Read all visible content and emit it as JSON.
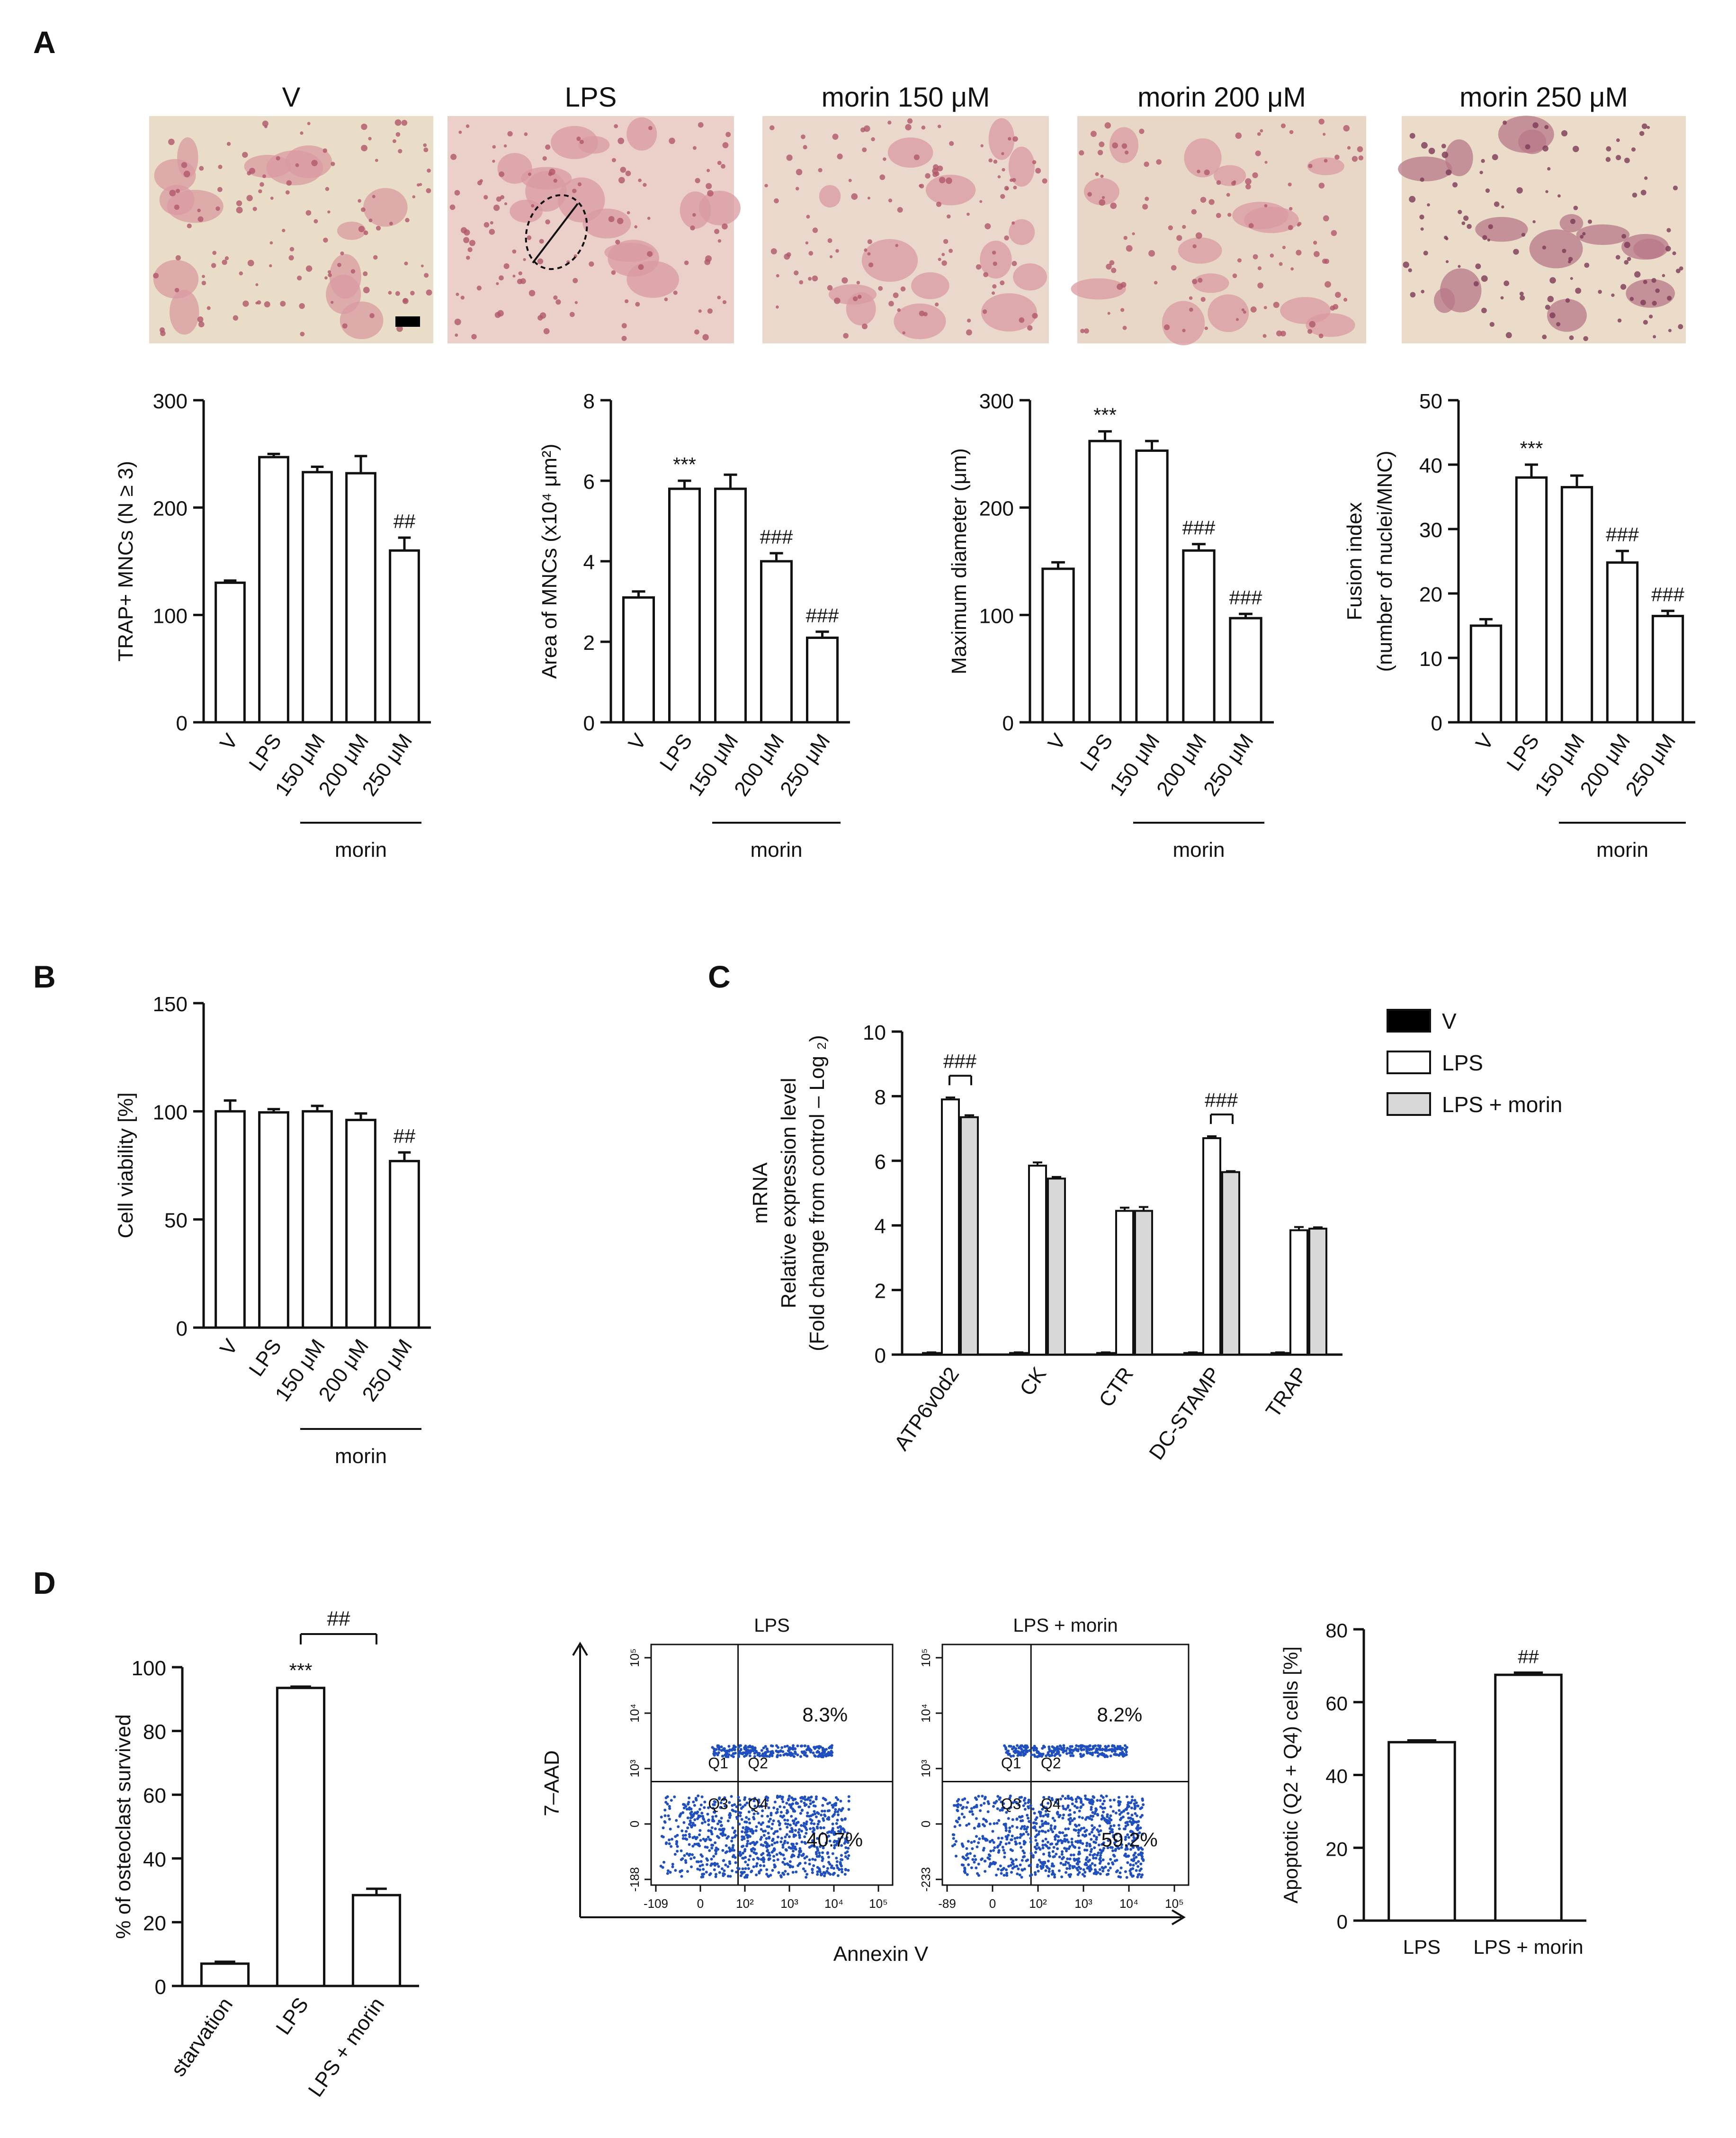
{
  "panel_letters": [
    "A",
    "B",
    "C",
    "D"
  ],
  "micrographs": {
    "titles": [
      "V",
      "LPS",
      "morin 150 μM",
      "morin 200 μM",
      "morin 250 μM"
    ],
    "tints": [
      "#e9ddc7",
      "#ebcfc9",
      "#ead8cc",
      "#e8d6c6",
      "#eadcc8"
    ]
  },
  "chart_data": [
    {
      "type": "bar",
      "panel": "A1",
      "categories": [
        "V",
        "LPS",
        "150 μM",
        "200 μM",
        "250 μM"
      ],
      "values": [
        130,
        247,
        233,
        232,
        160
      ],
      "errors": [
        2,
        3,
        5,
        16,
        12
      ],
      "annotations": [
        "",
        "",
        "",
        "",
        "##"
      ],
      "ylabel": "TRAP+ MNCs (N ≥ 3)",
      "yticks": [
        0,
        100,
        200,
        300
      ],
      "ylim": [
        0,
        300
      ],
      "group_label": "morin",
      "group_range": [
        2,
        4
      ],
      "legend": "none",
      "grid": false
    },
    {
      "type": "bar",
      "panel": "A2",
      "categories": [
        "V",
        "LPS",
        "150 μM",
        "200 μM",
        "250 μM"
      ],
      "values": [
        3.1,
        5.8,
        5.8,
        4.0,
        2.1
      ],
      "errors": [
        0.15,
        0.2,
        0.35,
        0.2,
        0.15
      ],
      "annotations": [
        "",
        "***",
        "",
        "###",
        "###"
      ],
      "ylabel": "Area of MNCs (x10⁴ μm²)",
      "yticks": [
        0,
        2,
        4,
        6,
        8
      ],
      "ylim": [
        0,
        8
      ],
      "group_label": "morin",
      "group_range": [
        2,
        4
      ],
      "legend": "none",
      "grid": false
    },
    {
      "type": "bar",
      "panel": "A3",
      "categories": [
        "V",
        "LPS",
        "150 μM",
        "200 μM",
        "250 μM"
      ],
      "values": [
        143,
        262,
        253,
        160,
        97
      ],
      "errors": [
        6,
        9,
        9,
        6,
        4
      ],
      "annotations": [
        "",
        "***",
        "",
        "###",
        "###"
      ],
      "ylabel": "Maximum diameter (μm)",
      "yticks": [
        0,
        100,
        200,
        300
      ],
      "ylim": [
        0,
        300
      ],
      "group_label": "morin",
      "group_range": [
        2,
        4
      ],
      "legend": "none",
      "grid": false
    },
    {
      "type": "bar",
      "panel": "A4",
      "categories": [
        "V",
        "LPS",
        "150 μM",
        "200 μM",
        "250 μM"
      ],
      "values": [
        15,
        38,
        36.5,
        24.8,
        16.5
      ],
      "errors": [
        1,
        2,
        1.8,
        1.8,
        0.8
      ],
      "annotations": [
        "",
        "***",
        "",
        "###",
        "###"
      ],
      "ylabel": "Fusion index",
      "ylabel2": "(number of nuclei/MNC)",
      "yticks": [
        0,
        10,
        20,
        30,
        40,
        50
      ],
      "ylim": [
        0,
        50
      ],
      "group_label": "morin",
      "group_range": [
        2,
        4
      ],
      "legend": "none",
      "grid": false
    },
    {
      "type": "bar",
      "panel": "B",
      "categories": [
        "V",
        "LPS",
        "150 μM",
        "200 μM",
        "250 μM"
      ],
      "values": [
        100,
        99.5,
        100,
        96,
        77
      ],
      "errors": [
        5,
        1.5,
        2.5,
        3,
        4
      ],
      "annotations": [
        "",
        "",
        "",
        "",
        "##"
      ],
      "ylabel": "Cell viability [%]",
      "yticks": [
        0,
        50,
        100,
        150
      ],
      "ylim": [
        0,
        150
      ],
      "group_label": "morin",
      "group_range": [
        2,
        4
      ],
      "legend": "none",
      "grid": false
    },
    {
      "type": "bar",
      "panel": "C",
      "categories": [
        "ATP6v0d2",
        "CK",
        "CTR",
        "DC-STAMP",
        "TRAP"
      ],
      "series": [
        {
          "name": "V",
          "color": "#000000",
          "values": [
            0.05,
            0.05,
            0.05,
            0.05,
            0.05
          ],
          "errors": [
            0.02,
            0.02,
            0.02,
            0.02,
            0.02
          ]
        },
        {
          "name": "LPS",
          "color": "#ffffff",
          "values": [
            7.9,
            5.85,
            4.45,
            6.7,
            3.85
          ],
          "errors": [
            0.06,
            0.1,
            0.1,
            0.06,
            0.1
          ]
        },
        {
          "name": "LPS + morin",
          "color": "#d8d8d8",
          "values": [
            7.35,
            5.45,
            4.45,
            5.65,
            3.9
          ],
          "errors": [
            0.06,
            0.05,
            0.12,
            0.03,
            0.04
          ]
        }
      ],
      "brackets": [
        {
          "category": 0,
          "label": "###"
        },
        {
          "category": 3,
          "label": "###"
        }
      ],
      "ylabel": "mRNA",
      "ylabel2": "Relative expression level",
      "ylabel3": "(Fold change from control – Log ₂)",
      "yticks": [
        0,
        2,
        4,
        6,
        8,
        10
      ],
      "ylim": [
        0,
        10
      ],
      "legend": "right",
      "grid": false
    },
    {
      "type": "bar",
      "panel": "D1",
      "categories": [
        "starvation",
        "LPS",
        "LPS + morin"
      ],
      "values": [
        7,
        93.5,
        28.5
      ],
      "errors": [
        0.6,
        0.4,
        2
      ],
      "annotations": [
        "",
        "***",
        ""
      ],
      "bracket": {
        "from": 1,
        "to": 2,
        "label": "##"
      },
      "ylabel": "% of osteoclast survived",
      "yticks": [
        0,
        20,
        40,
        60,
        80,
        100
      ],
      "ylim": [
        0,
        100
      ],
      "legend": "none",
      "grid": false
    },
    {
      "type": "scatter",
      "panel": "D2",
      "plots": [
        {
          "title": "LPS",
          "xticks": [
            "-109",
            "0",
            "10²",
            "10³",
            "10⁴",
            "10⁵"
          ],
          "yticks": [
            "-188",
            "0",
            "10³",
            "10⁴",
            "10⁵"
          ],
          "quadrants": [
            "Q1",
            "Q2",
            "Q3",
            "Q4"
          ],
          "upper_right_pct": "8.3%",
          "lower_right_pct": "40.7%"
        },
        {
          "title": "LPS + morin",
          "xticks": [
            "-89",
            "0",
            "10²",
            "10³",
            "10⁴",
            "10⁵"
          ],
          "yticks": [
            "-233",
            "0",
            "10³",
            "10⁴",
            "10⁵"
          ],
          "quadrants": [
            "Q1",
            "Q2",
            "Q3",
            "Q4"
          ],
          "upper_right_pct": "8.2%",
          "lower_right_pct": "59.2%"
        }
      ],
      "xlabel": "Annexin V",
      "ylabel": "7–AAD",
      "point_color": "#1f4fbf"
    },
    {
      "type": "bar",
      "panel": "D3",
      "categories": [
        "LPS",
        "LPS + morin"
      ],
      "values": [
        49,
        67.5
      ],
      "errors": [
        0.5,
        0.6
      ],
      "annotations": [
        "",
        "##"
      ],
      "ylabel": "Apoptotic (Q2 + Q4) cells [%]",
      "yticks": [
        0,
        20,
        40,
        60,
        80
      ],
      "ylim": [
        0,
        80
      ],
      "legend": "none",
      "grid": false
    }
  ]
}
